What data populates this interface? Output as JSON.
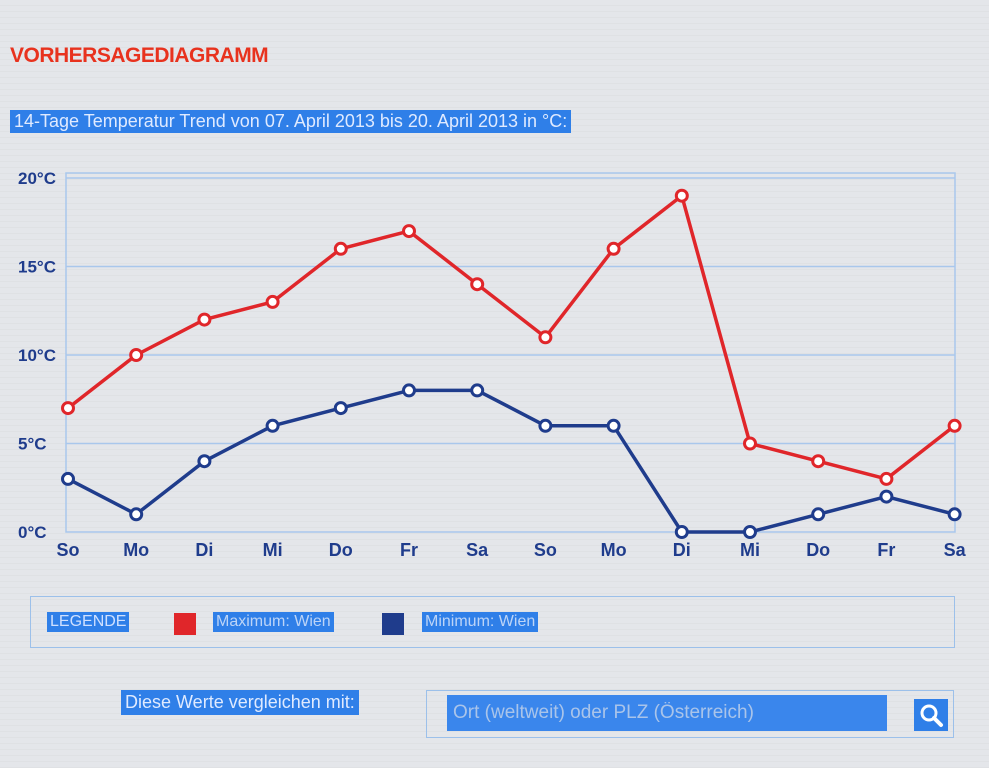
{
  "page_title": "VORHERSAGEDIAGRAMM",
  "colors": {
    "max": "#e0262a",
    "min": "#1f3c8c",
    "accent": "#2f7fe8",
    "title": "#e8321e"
  },
  "chart_data": {
    "type": "line",
    "title": "14-Tage Temperatur Trend von 07. April 2013 bis 20. April 2013 in °C:",
    "categories": [
      "So",
      "Mo",
      "Di",
      "Mi",
      "Do",
      "Fr",
      "Sa",
      "So",
      "Mo",
      "Di",
      "Mi",
      "Do",
      "Fr",
      "Sa"
    ],
    "series": [
      {
        "name": "Maximum: Wien",
        "values": [
          7,
          10,
          12,
          13,
          16,
          17,
          14,
          11,
          16,
          19,
          5,
          4,
          3,
          6
        ]
      },
      {
        "name": "Minimum: Wien",
        "values": [
          3,
          1,
          4,
          6,
          7,
          8,
          8,
          6,
          6,
          0,
          0,
          1,
          2,
          1
        ]
      }
    ],
    "ylim": [
      0,
      20
    ],
    "yticks": [
      "0°C",
      "5°C",
      "10°C",
      "15°C",
      "20°C"
    ],
    "grid": true,
    "legend_position": "bottom"
  },
  "legend": {
    "title": "LEGENDE",
    "max_label": "Maximum: Wien",
    "min_label": "Minimum: Wien"
  },
  "compare": {
    "label": "Diese Werte vergleichen mit:",
    "placeholder": "Ort (weltweit) oder PLZ (Österreich)",
    "search_icon": "search-icon"
  }
}
